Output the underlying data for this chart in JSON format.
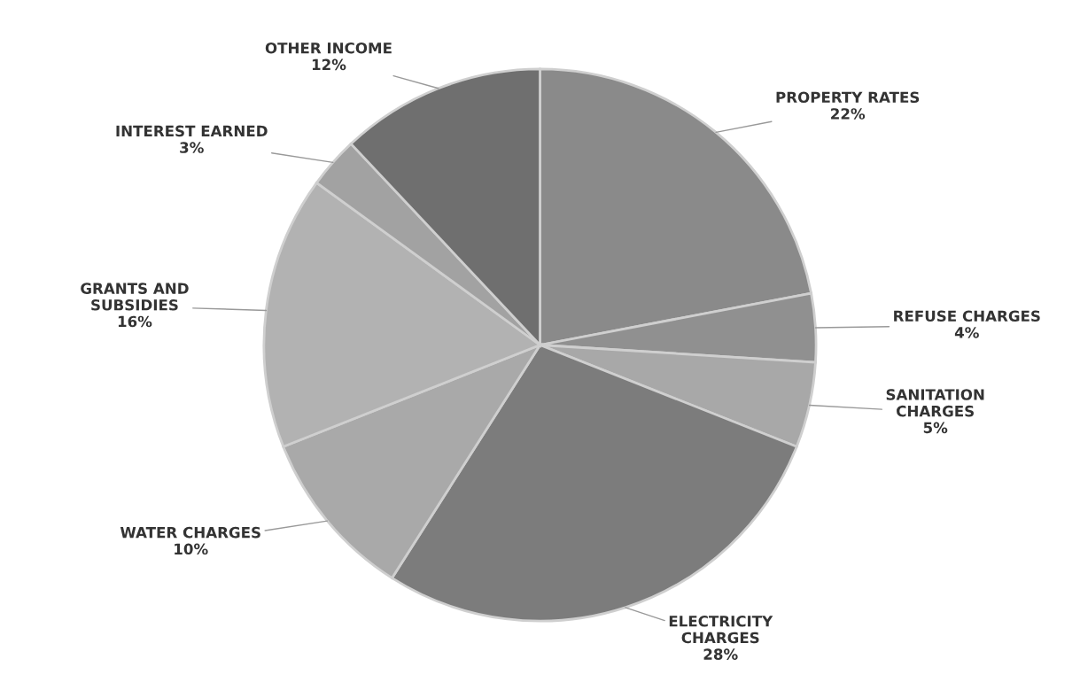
{
  "chart_data": {
    "type": "pie",
    "categories": [
      "PROPERTY RATES",
      "REFUSE CHARGES",
      "SANITATION\nCHARGES",
      "ELECTRICITY\nCHARGES",
      "WATER CHARGES",
      "GRANTS AND\nSUBSIDIES",
      "INTEREST EARNED",
      "OTHER INCOME"
    ],
    "values": [
      22,
      4,
      5,
      28,
      10,
      16,
      3,
      12
    ],
    "value_labels": [
      "22%",
      "4%",
      "5%",
      "28%",
      "10%",
      "16%",
      "3%",
      "12%"
    ],
    "colors": [
      "#8a8a8a",
      "#909090",
      "#a8a8a8",
      "#7c7c7c",
      "#a9a9a9",
      "#b2b2b2",
      "#a2a2a2",
      "#6f6f6f"
    ]
  }
}
